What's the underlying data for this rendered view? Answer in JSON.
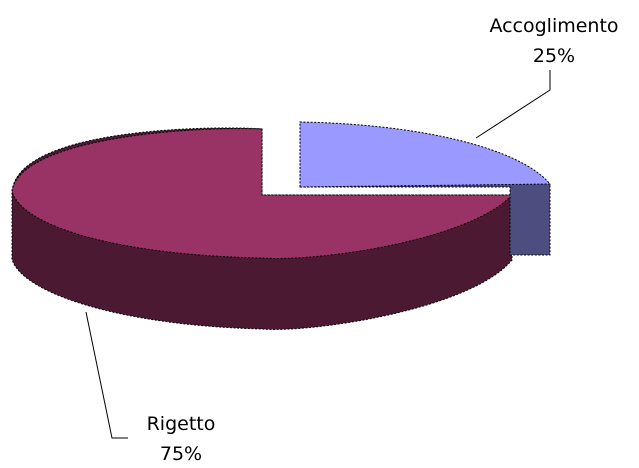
{
  "chart_data": {
    "type": "pie",
    "style": "3d-exploded",
    "categories": [
      "Accoglimento",
      "Rigetto"
    ],
    "values": [
      25,
      75
    ],
    "units": "%",
    "labels": [
      {
        "name": "Accoglimento",
        "value_text": "25%"
      },
      {
        "name": "Rigetto",
        "value_text": "75%"
      }
    ],
    "colors": {
      "Accoglimento": {
        "top": "#9999ff",
        "side": "#4d4d80"
      },
      "Rigetto": {
        "top": "#993366",
        "side": "#4c1933"
      }
    },
    "legend": "none",
    "label_placement": "outside-with-leader-lines"
  }
}
